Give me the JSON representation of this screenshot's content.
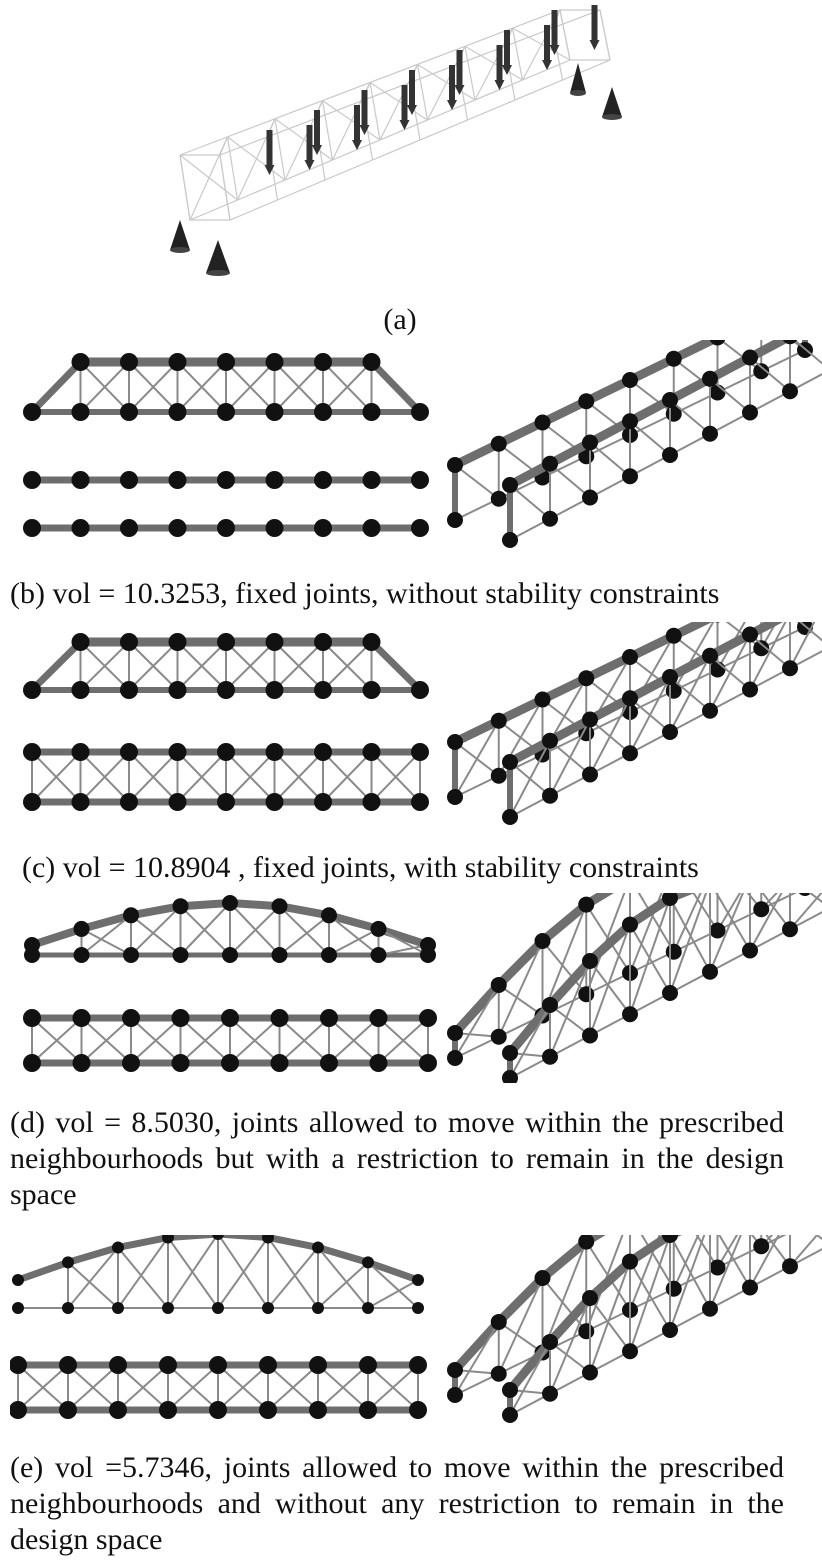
{
  "figure": {
    "panels": [
      {
        "id": "a",
        "caption": "(a)"
      },
      {
        "id": "b",
        "caption": "(b) vol = 10.3253, fixed joints, without stability constraints"
      },
      {
        "id": "c",
        "caption": "(c) vol = 10.8904 , fixed joints, with stability constraints"
      },
      {
        "id": "d",
        "caption": "(d) vol = 8.5030, joints allowed to move within the prescribed neighbourhoods but with a restriction to remain in the design space"
      },
      {
        "id": "e",
        "caption": "(e) vol =5.7346, joints allowed to move within the prescribed neighbourhoods and without any restriction to remain in the design space"
      }
    ]
  },
  "colors": {
    "joint": "#111111",
    "member": "#6e6e6e",
    "wireframe": "#c9c9c9",
    "load_arrow": "#333333"
  },
  "icons": [
    "support-cone-icon",
    "load-arrow-icon"
  ]
}
